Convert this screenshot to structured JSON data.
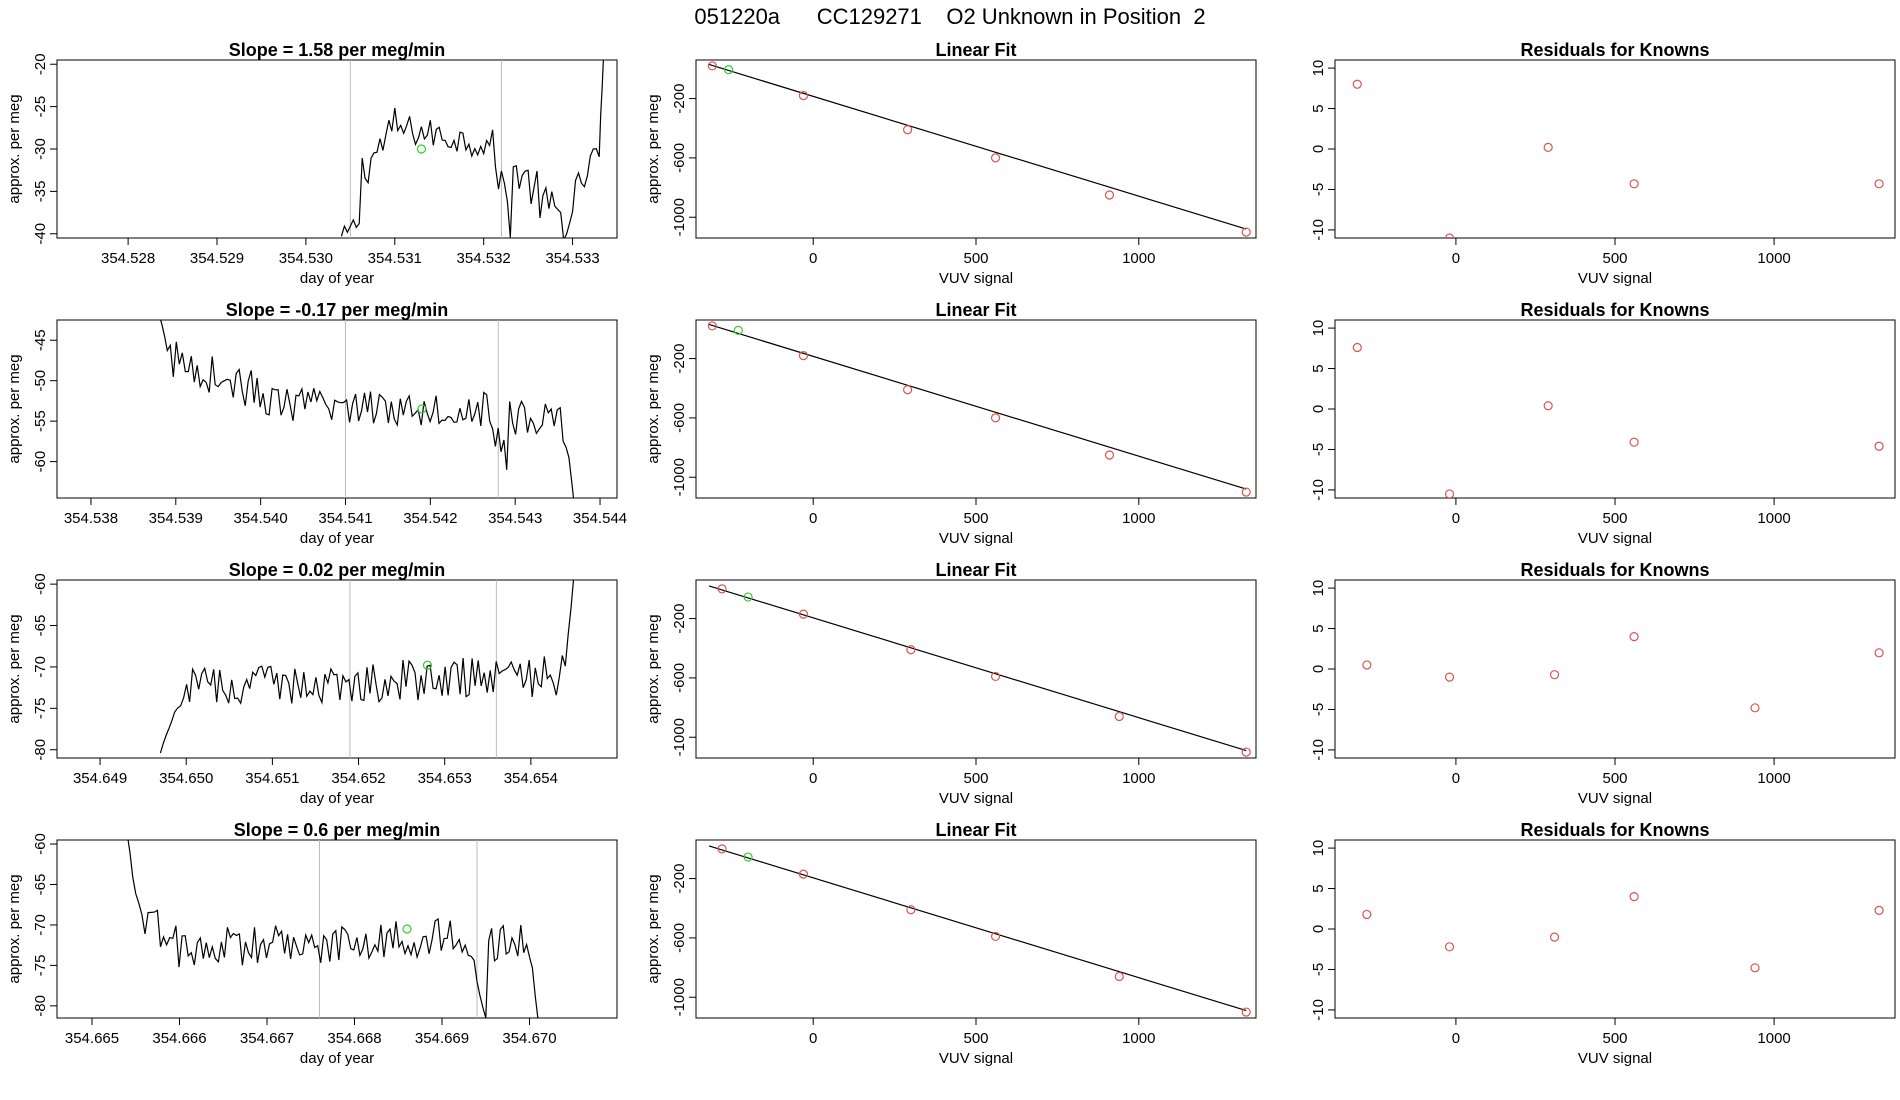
{
  "header": {
    "title": "051220a      CC129271    O2 Unknown in Position  2"
  },
  "colors": {
    "known_point": "#d9534f",
    "unknown_point": "#33cc33",
    "line": "#000000",
    "marker_line": "#bbbbbb"
  },
  "chart_data": [
    {
      "type": "line",
      "row": 0,
      "panel": "time-series",
      "title": "Slope =  1.58  per meg/min",
      "xlabel": "day of year",
      "ylabel": "approx. per meg",
      "xlim": [
        354.5272,
        354.5335
      ],
      "ylim": [
        -40.5,
        -19.5
      ],
      "xticks": [
        "354.528",
        "354.529",
        "354.530",
        "354.531",
        "354.532",
        "354.533"
      ],
      "yticks": [
        "-20",
        "-25",
        "-30",
        "-35",
        "-40"
      ],
      "vlines": [
        354.5305,
        354.5322
      ],
      "unknown_point": [
        354.5313,
        -30
      ],
      "segments": [
        {
          "x0": 354.5304,
          "x1": 354.5306,
          "base": [
            -40.6,
            -38.5
          ],
          "amp": 1.2
        },
        {
          "x0": 354.5306,
          "x1": 354.531,
          "base": [
            -33,
            -27.5
          ],
          "amp": 2.5
        },
        {
          "x0": 354.531,
          "x1": 354.5321,
          "base": [
            -27.5,
            -29.5
          ],
          "amp": 1.8
        },
        {
          "x0": 354.5321,
          "x1": 354.5323,
          "base": [
            -30,
            -38
          ],
          "amp": 2.5
        },
        {
          "x0": 354.5323,
          "x1": 354.5326,
          "base": [
            -32,
            -35
          ],
          "amp": 2.5
        },
        {
          "x0": 354.5326,
          "x1": 354.533,
          "base": [
            -36,
            -39
          ],
          "amp": 2.5
        },
        {
          "x0": 354.533,
          "x1": 354.5333,
          "base": [
            -36,
            -30
          ],
          "amp": 2.0
        },
        {
          "x0": 354.5333,
          "x1": 354.53335,
          "base": [
            -30,
            -19
          ],
          "amp": 0.5
        }
      ]
    },
    {
      "type": "scatter",
      "row": 0,
      "panel": "linear-fit",
      "title": "Linear Fit",
      "xlabel": "VUV signal",
      "ylabel": "approx. per meg",
      "xlim": [
        -360,
        1360
      ],
      "ylim": [
        -1140,
        60
      ],
      "xticks": [
        "0",
        "500",
        "1000"
      ],
      "yticks": [
        "-200",
        "-600",
        "-1000"
      ],
      "fit_line": [
        [
          -320,
          30
        ],
        [
          1330,
          -1080
        ]
      ],
      "known_points": [
        [
          -310,
          20
        ],
        [
          -30,
          -180
        ],
        [
          290,
          -410
        ],
        [
          560,
          -600
        ],
        [
          910,
          -850
        ],
        [
          1330,
          -1100
        ]
      ],
      "unknown_points": [
        [
          -260,
          -5
        ]
      ]
    },
    {
      "type": "scatter",
      "row": 0,
      "panel": "residuals",
      "title": "Residuals for Knowns",
      "xlabel": "VUV signal",
      "ylabel": "",
      "xlim": [
        -380,
        1380
      ],
      "ylim": [
        -11,
        11
      ],
      "xticks": [
        "0",
        "500",
        "1000"
      ],
      "yticks": [
        "10",
        "5",
        "0",
        "-5",
        "-10"
      ],
      "known_points": [
        [
          -310,
          8
        ],
        [
          -20,
          -11
        ],
        [
          290,
          0.2
        ],
        [
          560,
          -4.3
        ],
        [
          1330,
          -4.3
        ]
      ]
    },
    {
      "type": "line",
      "row": 1,
      "panel": "time-series",
      "title": "Slope =  -0.17  per meg/min",
      "xlabel": "day of year",
      "ylabel": "approx. per meg",
      "xlim": [
        354.5376,
        354.5442
      ],
      "ylim": [
        -64.5,
        -42.5
      ],
      "xticks": [
        "354.538",
        "354.539",
        "354.540",
        "354.541",
        "354.542",
        "354.543",
        "354.544"
      ],
      "yticks": [
        "-45",
        "-50",
        "-55",
        "-60"
      ],
      "vlines": [
        354.541,
        354.5428
      ],
      "unknown_point": [
        354.5419,
        -53.5
      ],
      "segments": [
        {
          "x0": 354.5388,
          "x1": 354.5389,
          "base": [
            -42,
            -46
          ],
          "amp": 0.5
        },
        {
          "x0": 354.5389,
          "x1": 354.5401,
          "base": [
            -47,
            -52
          ],
          "amp": 2.5
        },
        {
          "x0": 354.5401,
          "x1": 354.5427,
          "base": [
            -53,
            -53.5
          ],
          "amp": 2.2
        },
        {
          "x0": 354.5427,
          "x1": 354.5429,
          "base": [
            -55,
            -60
          ],
          "amp": 2.0
        },
        {
          "x0": 354.5429,
          "x1": 354.5436,
          "base": [
            -54,
            -56
          ],
          "amp": 3.0
        },
        {
          "x0": 354.5436,
          "x1": 354.5437,
          "base": [
            -56,
            -66
          ],
          "amp": 0.5
        }
      ]
    },
    {
      "type": "scatter",
      "row": 1,
      "panel": "linear-fit",
      "title": "Linear Fit",
      "xlabel": "VUV signal",
      "ylabel": "approx. per meg",
      "xlim": [
        -360,
        1360
      ],
      "ylim": [
        -1140,
        60
      ],
      "xticks": [
        "0",
        "500",
        "1000"
      ],
      "yticks": [
        "-200",
        "-600",
        "-1000"
      ],
      "fit_line": [
        [
          -320,
          30
        ],
        [
          1330,
          -1080
        ]
      ],
      "known_points": [
        [
          -310,
          20
        ],
        [
          -30,
          -180
        ],
        [
          290,
          -410
        ],
        [
          560,
          -600
        ],
        [
          910,
          -850
        ],
        [
          1330,
          -1100
        ]
      ],
      "unknown_points": [
        [
          -230,
          -10
        ]
      ]
    },
    {
      "type": "scatter",
      "row": 1,
      "panel": "residuals",
      "title": "Residuals for Knowns",
      "xlabel": "VUV signal",
      "ylabel": "",
      "xlim": [
        -380,
        1380
      ],
      "ylim": [
        -11,
        11
      ],
      "xticks": [
        "0",
        "500",
        "1000"
      ],
      "yticks": [
        "10",
        "5",
        "0",
        "-5",
        "-10"
      ],
      "known_points": [
        [
          -310,
          7.6
        ],
        [
          -20,
          -10.5
        ],
        [
          290,
          0.4
        ],
        [
          560,
          -4.1
        ],
        [
          1330,
          -4.6
        ]
      ]
    },
    {
      "type": "line",
      "row": 2,
      "panel": "time-series",
      "title": "Slope =  0.02  per meg/min",
      "xlabel": "day of year",
      "ylabel": "approx. per meg",
      "xlim": [
        354.6485,
        354.655
      ],
      "ylim": [
        -81,
        -59.5
      ],
      "xticks": [
        "354.649",
        "354.650",
        "354.651",
        "354.652",
        "354.653",
        "354.654"
      ],
      "yticks": [
        "-60",
        "-65",
        "-70",
        "-75",
        "-80"
      ],
      "vlines": [
        354.6519,
        354.6536
      ],
      "unknown_point": [
        354.6528,
        -69.8
      ],
      "segments": [
        {
          "x0": 354.6497,
          "x1": 354.6499,
          "base": [
            -81,
            -75
          ],
          "amp": 1.0
        },
        {
          "x0": 354.6499,
          "x1": 354.6544,
          "base": [
            -72.5,
            -71
          ],
          "amp": 2.5
        },
        {
          "x0": 354.6544,
          "x1": 354.6545,
          "base": [
            -70,
            -59
          ],
          "amp": 0.5
        }
      ]
    },
    {
      "type": "scatter",
      "row": 2,
      "panel": "linear-fit",
      "title": "Linear Fit",
      "xlabel": "VUV signal",
      "ylabel": "approx. per meg",
      "xlim": [
        -360,
        1360
      ],
      "ylim": [
        -1140,
        60
      ],
      "xticks": [
        "0",
        "500",
        "1000"
      ],
      "yticks": [
        "-200",
        "-600",
        "-1000"
      ],
      "fit_line": [
        [
          -320,
          20
        ],
        [
          1330,
          -1090
        ]
      ],
      "known_points": [
        [
          -280,
          0
        ],
        [
          -30,
          -170
        ],
        [
          300,
          -410
        ],
        [
          560,
          -590
        ],
        [
          940,
          -860
        ],
        [
          1330,
          -1100
        ]
      ],
      "unknown_points": [
        [
          -200,
          -55
        ]
      ]
    },
    {
      "type": "scatter",
      "row": 2,
      "panel": "residuals",
      "title": "Residuals for Knowns",
      "xlabel": "VUV signal",
      "ylabel": "",
      "xlim": [
        -380,
        1380
      ],
      "ylim": [
        -11,
        11
      ],
      "xticks": [
        "0",
        "500",
        "1000"
      ],
      "yticks": [
        "10",
        "5",
        "0",
        "-5",
        "-10"
      ],
      "known_points": [
        [
          -280,
          0.5
        ],
        [
          -20,
          -1
        ],
        [
          310,
          -0.7
        ],
        [
          560,
          4
        ],
        [
          940,
          -4.8
        ],
        [
          1330,
          2
        ]
      ]
    },
    {
      "type": "line",
      "row": 3,
      "panel": "time-series",
      "title": "Slope =  0.6  per meg/min",
      "xlabel": "day of year",
      "ylabel": "approx. per meg",
      "xlim": [
        354.6646,
        354.671
      ],
      "ylim": [
        -81.5,
        -59.5
      ],
      "xticks": [
        "354.665",
        "354.666",
        "354.667",
        "354.668",
        "354.669",
        "354.670"
      ],
      "yticks": [
        "-60",
        "-65",
        "-70",
        "-75",
        "-80"
      ],
      "vlines": [
        354.6676,
        354.6694
      ],
      "unknown_point": [
        354.6686,
        -70.5
      ],
      "segments": [
        {
          "x0": 354.6654,
          "x1": 354.6655,
          "base": [
            -59,
            -66
          ],
          "amp": 0.5
        },
        {
          "x0": 354.6655,
          "x1": 354.6661,
          "base": [
            -68,
            -74
          ],
          "amp": 2.5
        },
        {
          "x0": 354.6661,
          "x1": 354.6693,
          "base": [
            -73,
            -71.5
          ],
          "amp": 2.5
        },
        {
          "x0": 354.6693,
          "x1": 354.6695,
          "base": [
            -72,
            -82
          ],
          "amp": 1.0
        },
        {
          "x0": 354.6695,
          "x1": 354.67,
          "base": [
            -72,
            -72
          ],
          "amp": 2.5
        },
        {
          "x0": 354.67,
          "x1": 354.6701,
          "base": [
            -72,
            -82
          ],
          "amp": 0.5
        }
      ]
    },
    {
      "type": "scatter",
      "row": 3,
      "panel": "linear-fit",
      "title": "Linear Fit",
      "xlabel": "VUV signal",
      "ylabel": "approx. per meg",
      "xlim": [
        -360,
        1360
      ],
      "ylim": [
        -1140,
        60
      ],
      "xticks": [
        "0",
        "500",
        "1000"
      ],
      "yticks": [
        "-200",
        "-600",
        "-1000"
      ],
      "fit_line": [
        [
          -320,
          20
        ],
        [
          1330,
          -1090
        ]
      ],
      "known_points": [
        [
          -280,
          0
        ],
        [
          -30,
          -170
        ],
        [
          300,
          -410
        ],
        [
          560,
          -590
        ],
        [
          940,
          -860
        ],
        [
          1330,
          -1100
        ]
      ],
      "unknown_points": [
        [
          -200,
          -55
        ]
      ]
    },
    {
      "type": "scatter",
      "row": 3,
      "panel": "residuals",
      "title": "Residuals for Knowns",
      "xlabel": "VUV signal",
      "ylabel": "",
      "xlim": [
        -380,
        1380
      ],
      "ylim": [
        -11,
        11
      ],
      "xticks": [
        "0",
        "500",
        "1000"
      ],
      "yticks": [
        "10",
        "5",
        "0",
        "-5",
        "-10"
      ],
      "known_points": [
        [
          -280,
          1.8
        ],
        [
          -20,
          -2.2
        ],
        [
          310,
          -1
        ],
        [
          560,
          4
        ],
        [
          940,
          -4.8
        ],
        [
          1330,
          2.3
        ]
      ]
    }
  ]
}
